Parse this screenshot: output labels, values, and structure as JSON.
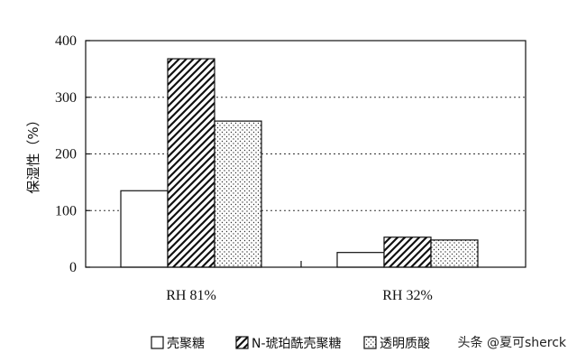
{
  "chart_data": {
    "type": "bar",
    "title": "",
    "xlabel": "",
    "ylabel": "保湿性（%）",
    "ylim": [
      0,
      400
    ],
    "yticks": [
      0,
      100,
      200,
      300,
      400
    ],
    "grid": "horizontal dotted",
    "legend_position": "bottom",
    "categories": [
      "RH 81%",
      "RH 32%"
    ],
    "series": [
      {
        "name": "壳聚糖",
        "pattern": "plain",
        "values": [
          135,
          26
        ]
      },
      {
        "name": "N-琥珀酰壳聚糖",
        "pattern": "diagonal-hatch",
        "values": [
          368,
          53
        ]
      },
      {
        "name": "透明质酸",
        "pattern": "dotted",
        "values": [
          258,
          48
        ]
      }
    ]
  },
  "watermark": {
    "text": "头条 @夏可sherck"
  },
  "colors": {
    "axis": "#111111",
    "bar_fill": "#ffffff",
    "grid": "#333333"
  }
}
